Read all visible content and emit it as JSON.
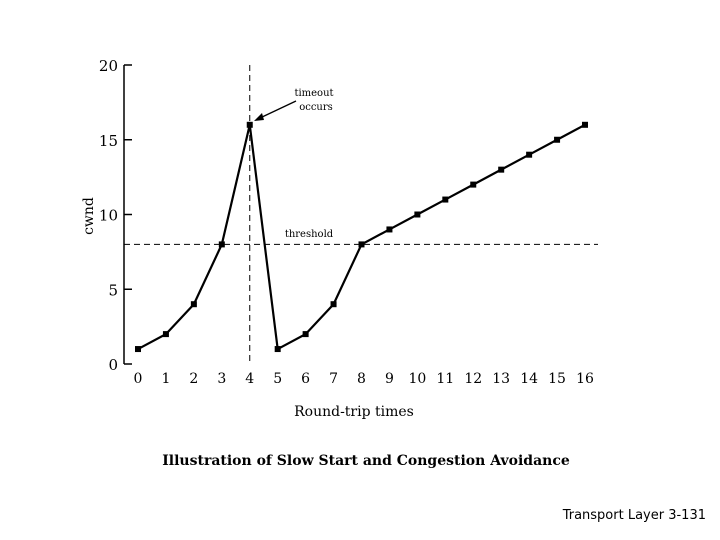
{
  "chart_data": {
    "type": "line",
    "title": "Illustration of Slow Start and Congestion Avoidance",
    "xlabel": "Round-trip times",
    "ylabel": "cwnd",
    "xlim": [
      0,
      16
    ],
    "ylim": [
      0,
      20
    ],
    "x_ticks": [
      "0",
      "1",
      "2",
      "3",
      "4",
      "5",
      "6",
      "7",
      "8",
      "9",
      "10",
      "11",
      "12",
      "13",
      "14",
      "15",
      "16"
    ],
    "y_ticks": [
      "0",
      "5",
      "10",
      "15",
      "20"
    ],
    "x": [
      0,
      1,
      2,
      3,
      4,
      5,
      6,
      7,
      8,
      9,
      10,
      11,
      12,
      13,
      14,
      15,
      16
    ],
    "series": [
      {
        "name": "cwnd",
        "values": [
          1,
          2,
          4,
          8,
          16,
          1,
          2,
          4,
          8,
          9,
          10,
          11,
          12,
          13,
          14,
          15,
          16
        ]
      }
    ],
    "threshold": {
      "label": "threshold",
      "value": 8
    },
    "timeout": {
      "label_line1": "timeout",
      "label_line2": "occurs",
      "x": 4
    },
    "grid": false
  },
  "footer": "Transport Layer 3-131"
}
